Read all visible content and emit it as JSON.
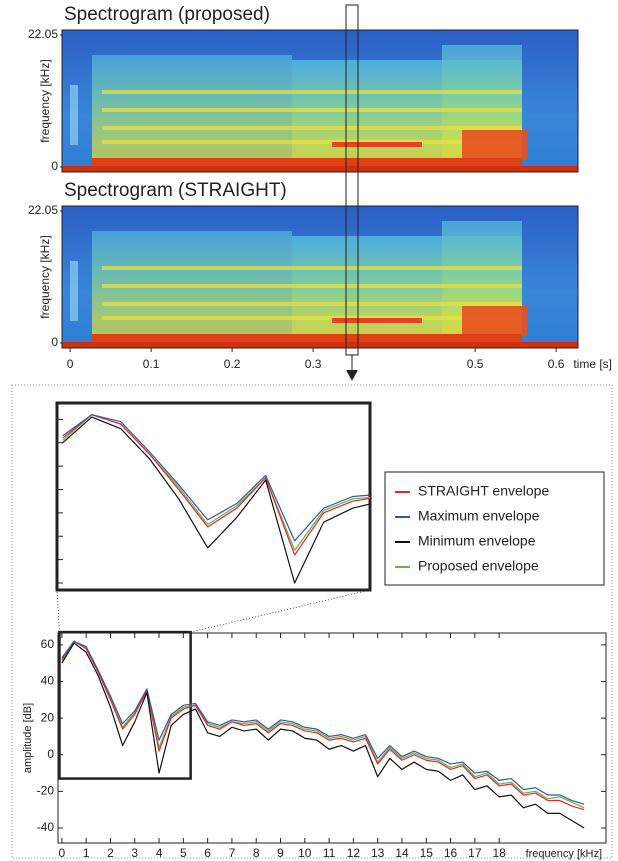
{
  "chart_data": [
    {
      "type": "spectrogram",
      "title": "Spectrogram (proposed)",
      "ylabel": "frequency [kHz]",
      "ylim": [
        0,
        22.05
      ],
      "yticks": [
        0,
        22.05
      ]
    },
    {
      "type": "spectrogram",
      "title": "Spectrogram (STRAIGHT)",
      "ylabel": "frequency [kHz]",
      "ylim": [
        0,
        22.05
      ],
      "yticks": [
        0,
        22.05
      ],
      "xlabel": "time [s]",
      "xlim": [
        -0.01,
        0.627
      ],
      "xticks": [
        0,
        0.1,
        0.2,
        0.3,
        0.5,
        0.6
      ]
    },
    {
      "type": "line",
      "xlabel": "frequency [kHz]",
      "ylabel": "amplitude [dB]",
      "xlim": [
        -0.16,
        22.4
      ],
      "ylim": [
        -48.2,
        66.5
      ],
      "xticks": [
        0,
        1,
        2,
        3,
        4,
        5,
        6,
        7,
        8,
        9,
        10,
        11,
        12,
        13,
        14,
        15,
        16,
        17,
        18
      ],
      "yticks": [
        -40,
        -20,
        0,
        20,
        40,
        60
      ],
      "zoom": {
        "xlim": [
          -0.1,
          5.3
        ],
        "ylim": [
          -13,
          67
        ],
        "yticks": [
          -10,
          0,
          10,
          20,
          30,
          40,
          50,
          60
        ]
      },
      "x": [
        0,
        0.5,
        1,
        1.5,
        2,
        2.5,
        3,
        3.5,
        4,
        4.5,
        5,
        5.5,
        6,
        6.5,
        7,
        7.5,
        8,
        8.5,
        9,
        9.5,
        10,
        10.5,
        11,
        11.5,
        12,
        12.5,
        13,
        13.5,
        14,
        14.5,
        15,
        15.5,
        16,
        16.5,
        17,
        17.5,
        18,
        18.5,
        19,
        19.5,
        20,
        20.5,
        21,
        21.5
      ],
      "series": [
        {
          "name": "STRAIGHT envelope",
          "color": "#e8262a",
          "values": [
            52,
            62,
            58,
            45,
            30,
            14,
            22,
            35,
            2,
            20,
            25,
            27,
            16,
            14,
            18,
            16,
            17,
            12,
            17,
            16,
            13,
            12,
            8,
            9,
            7,
            9,
            -5,
            3,
            -3,
            0,
            -3,
            -4,
            -8,
            -6,
            -13,
            -11,
            -17,
            -16,
            -22,
            -21,
            -25,
            -25,
            -28,
            -30
          ]
        },
        {
          "name": "Maximum envelope",
          "color": "#2c5aa8",
          "values": [
            53,
            62,
            59,
            46,
            32,
            17,
            24,
            36,
            8,
            22,
            27,
            28,
            18,
            16,
            19,
            18,
            19,
            14,
            19,
            18,
            15,
            14,
            10,
            11,
            9,
            11,
            -2,
            5,
            -1,
            2,
            -1,
            -2,
            -5,
            -4,
            -10,
            -9,
            -14,
            -13,
            -19,
            -18,
            -22,
            -22,
            -25,
            -27
          ]
        },
        {
          "name": "Minimum envelope",
          "color": "#111111",
          "values": [
            50,
            61,
            56,
            43,
            26,
            5,
            18,
            34,
            -10,
            16,
            22,
            25,
            12,
            10,
            15,
            13,
            14,
            8,
            14,
            13,
            9,
            8,
            3,
            5,
            2,
            5,
            -12,
            -2,
            -8,
            -4,
            -8,
            -9,
            -14,
            -11,
            -19,
            -17,
            -23,
            -22,
            -29,
            -27,
            -32,
            -32,
            -36,
            -40
          ]
        },
        {
          "name": "Proposed envelope",
          "color": "#6ab04c",
          "values": [
            51,
            62,
            58,
            45,
            31,
            15,
            23,
            35,
            4,
            21,
            26,
            27,
            17,
            15,
            18,
            17,
            18,
            13,
            18,
            17,
            14,
            13,
            9,
            10,
            8,
            10,
            -4,
            4,
            -2,
            1,
            -2,
            -3,
            -7,
            -5,
            -12,
            -10,
            -16,
            -15,
            -21,
            -20,
            -24,
            -23,
            -26,
            -29
          ]
        }
      ]
    }
  ]
}
